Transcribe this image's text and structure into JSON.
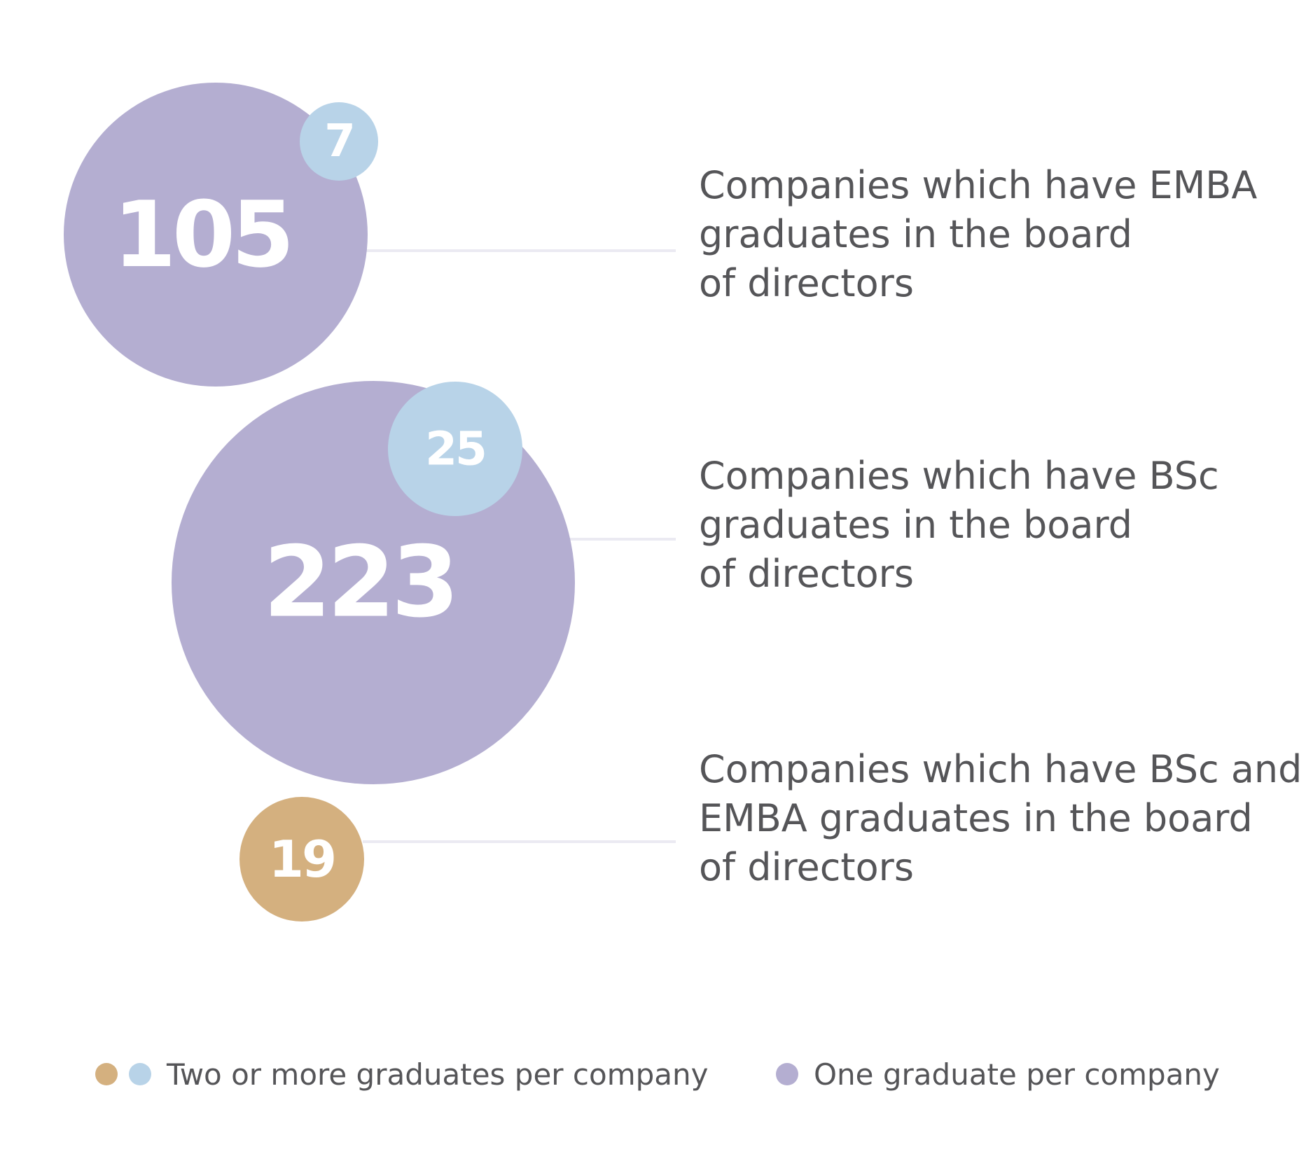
{
  "chart_data": {
    "type": "bubble",
    "rows": [
      {
        "label_lines": [
          "Companies which have EMBA",
          "graduates in the board",
          "of directors"
        ],
        "one_graduate": 105,
        "two_or_more": 7
      },
      {
        "label_lines": [
          "Companies which have BSc",
          "graduates in the board",
          "of directors"
        ],
        "one_graduate": 223,
        "two_or_more": 25
      },
      {
        "label_lines": [
          "Companies which have BSc and",
          "EMBA graduates in the board",
          "of directors"
        ],
        "one_graduate": null,
        "two_or_more": 19
      }
    ],
    "legend": {
      "two_or_more": "Two or more graduates per company",
      "one": "One graduate per company"
    },
    "colors": {
      "one_graduate": "#b4aed1",
      "two_or_more_emba_bsc": "#b8d3e8",
      "two_or_more_both": "#d4b07f",
      "connector": "#ebeaf2",
      "text": "#555558"
    }
  }
}
